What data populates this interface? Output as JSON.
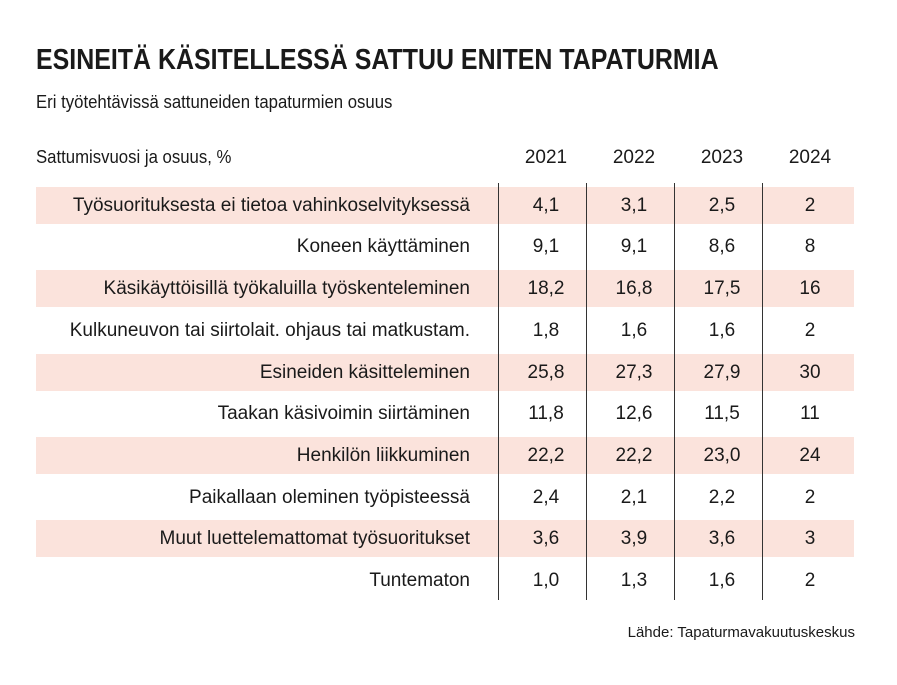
{
  "title": "ESINEITÄ KÄSITELLESSÄ SATTUU ENITEN TAPATURMIA",
  "subtitle": "Eri työtehtävissä sattuneiden tapaturmien osuus",
  "source": "Lähde: Tapaturmavakuutuskeskus",
  "chart_data": {
    "type": "table",
    "header_label": "Sattumisvuosi ja osuus, %",
    "columns": [
      "2021",
      "2022",
      "2023",
      "2024"
    ],
    "rows": [
      {
        "label": "Työsuorituksesta ei tietoa vahinkoselvityksessä",
        "values": [
          "4,1",
          "3,1",
          "2,5",
          "2"
        ]
      },
      {
        "label": "Koneen käyttäminen",
        "values": [
          "9,1",
          "9,1",
          "8,6",
          "8"
        ]
      },
      {
        "label": "Käsikäyttöisillä työkaluilla työskenteleminen",
        "values": [
          "18,2",
          "16,8",
          "17,5",
          "16"
        ]
      },
      {
        "label": "Kulkuneuvon tai siirtolait. ohjaus tai matkustam.",
        "values": [
          "1,8",
          "1,6",
          "1,6",
          "2"
        ]
      },
      {
        "label": "Esineiden käsitteleminen",
        "values": [
          "25,8",
          "27,3",
          "27,9",
          "30"
        ]
      },
      {
        "label": "Taakan käsivoimin siirtäminen",
        "values": [
          "11,8",
          "12,6",
          "11,5",
          "11"
        ]
      },
      {
        "label": "Henkilön liikkuminen",
        "values": [
          "22,2",
          "22,2",
          "23,0",
          "24"
        ]
      },
      {
        "label": "Paikallaan oleminen työpisteessä",
        "values": [
          "2,4",
          "2,1",
          "2,2",
          "2"
        ]
      },
      {
        "label": "Muut luettelemattomat työsuoritukset",
        "values": [
          "3,6",
          "3,9",
          "3,6",
          "3"
        ]
      },
      {
        "label": "Tuntematon",
        "values": [
          "1,0",
          "1,3",
          "1,6",
          "2"
        ]
      }
    ],
    "row_shading_color": "#fbe3dc"
  }
}
